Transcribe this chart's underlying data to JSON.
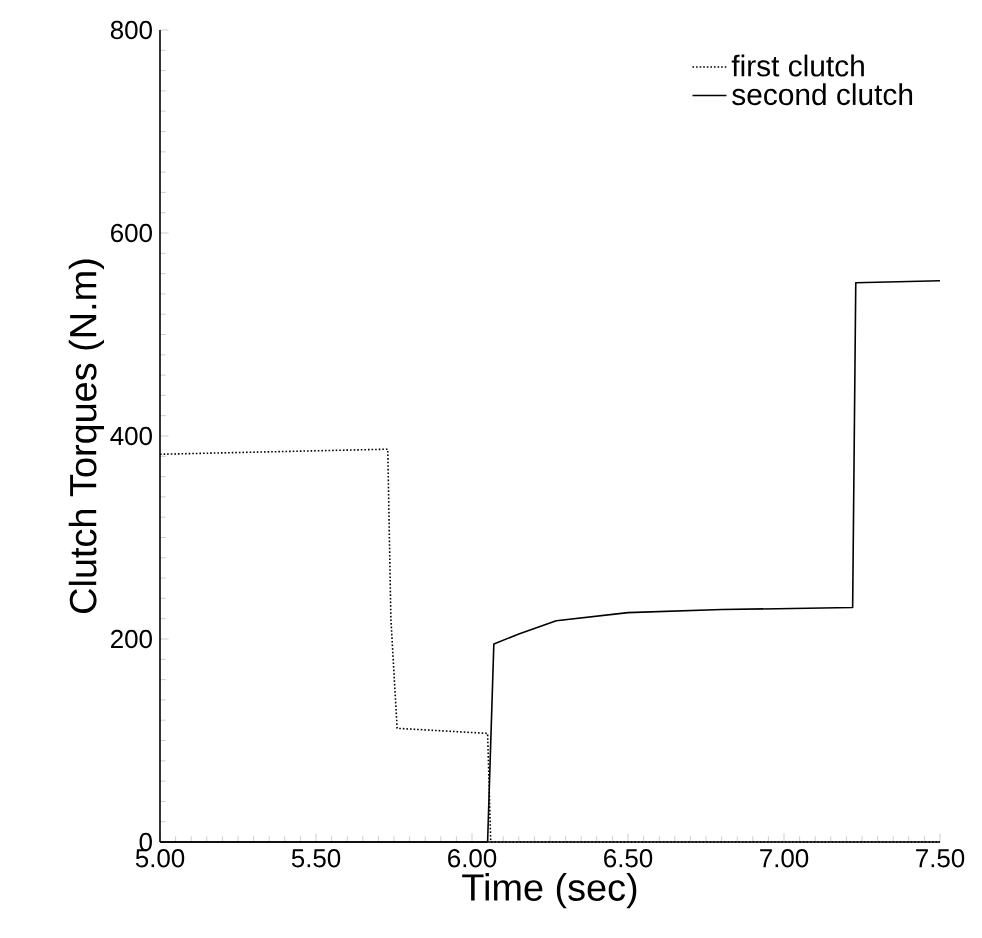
{
  "chart_data": {
    "type": "line",
    "xlabel": "Time (sec)",
    "ylabel": "Clutch Torques (N.m)",
    "xlim": [
      5.0,
      7.5
    ],
    "xticks": [
      {
        "value": 5.0,
        "label": "5.00"
      },
      {
        "value": 5.5,
        "label": "5.50"
      },
      {
        "value": 6.0,
        "label": "6.00"
      },
      {
        "value": 6.5,
        "label": "6.50"
      },
      {
        "value": 7.0,
        "label": "7.00"
      },
      {
        "value": 7.5,
        "label": "7.50"
      }
    ],
    "ylim": [
      0,
      800
    ],
    "yticks": [
      0,
      200,
      400,
      600,
      800
    ],
    "grid": false,
    "legend": "top right",
    "marker": "none",
    "series": [
      {
        "name": "first clutch",
        "color": "#000000",
        "line_style": "dotted",
        "x": [
          5.0,
          5.73,
          5.74,
          5.76,
          6.05,
          6.06,
          6.1,
          7.5
        ],
        "values": [
          382,
          387,
          220,
          112,
          107,
          0,
          0,
          0
        ]
      },
      {
        "name": "second clutch",
        "color": "#000000",
        "line_style": "solid",
        "x": [
          5.0,
          6.05,
          6.07,
          6.15,
          6.27,
          6.5,
          6.8,
          7.22,
          7.23,
          7.5
        ],
        "values": [
          0,
          0,
          195,
          205,
          218,
          226,
          229,
          231,
          551,
          553
        ]
      }
    ]
  }
}
